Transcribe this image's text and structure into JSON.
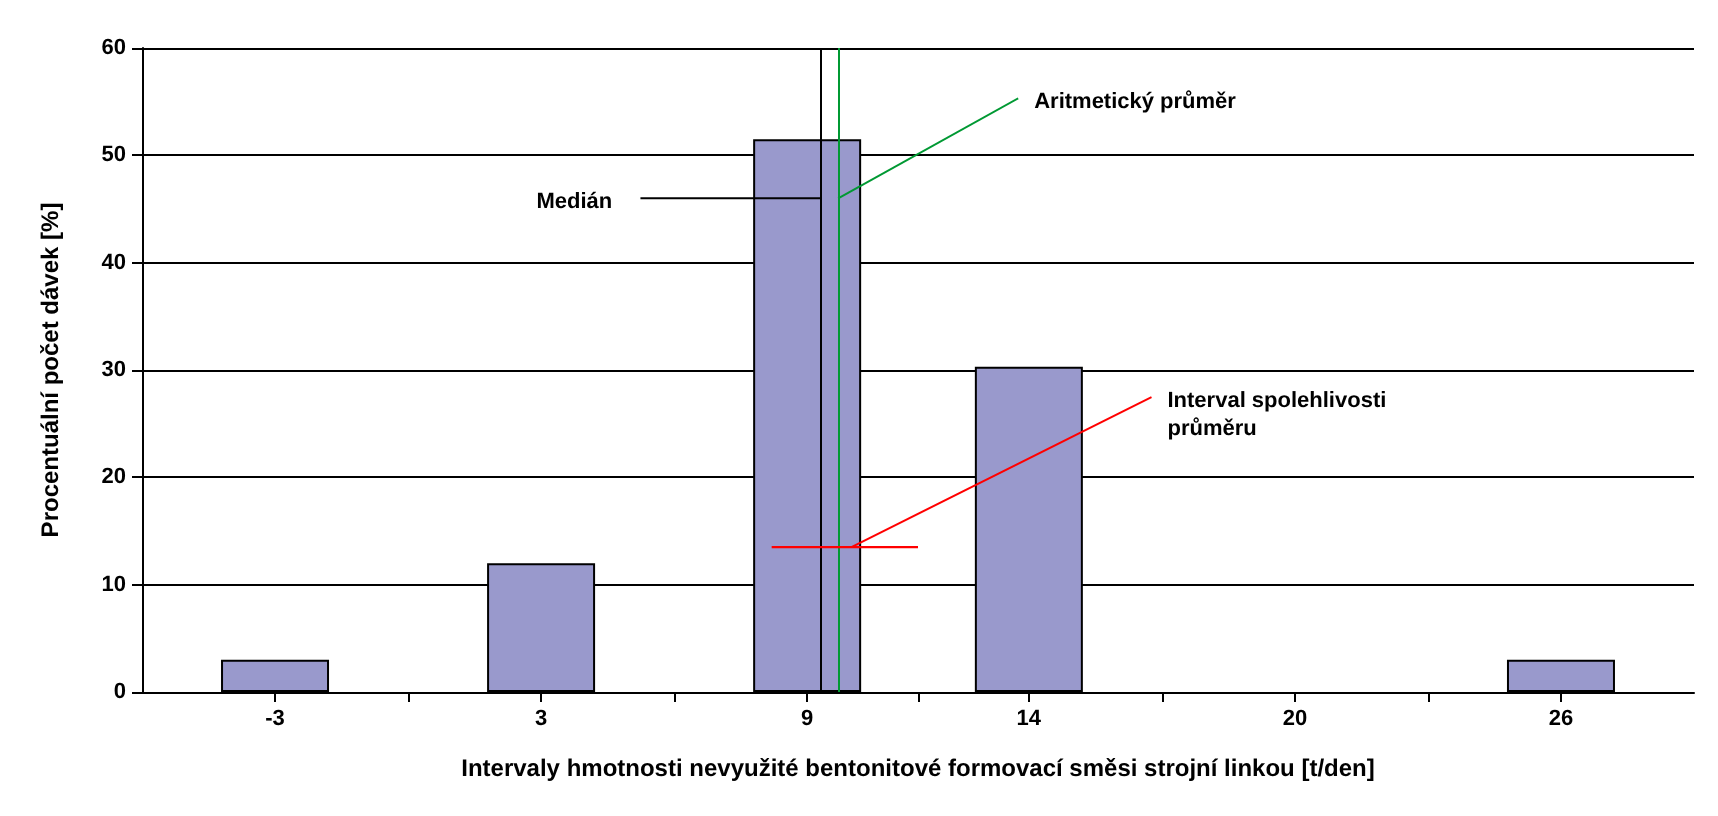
{
  "chart_data": {
    "type": "bar",
    "xlabel": "Intervaly hmotnosti nevyužité bentonitové formovací směsi strojní linkou [t/den]",
    "ylabel": "Procentuální počet dávek [%]",
    "x": [
      -3,
      3,
      9,
      14,
      20,
      26
    ],
    "series": [
      {
        "color": "#9999cc",
        "values": [
          3,
          12,
          51.5,
          30.3,
          0,
          3
        ]
      },
      {
        "type": "line",
        "color": "#ff0000",
        "x": [
          8.2,
          11.5
        ],
        "values": [
          13.5,
          13.5
        ]
      }
    ],
    "xlim": [
      -6,
      29
    ],
    "xticks": [
      -3,
      {
        "value": 0,
        "label": null
      },
      3,
      {
        "value": 6,
        "label": null
      },
      9,
      {
        "value": 11.5,
        "label": null
      },
      14,
      {
        "value": 17,
        "label": null
      },
      20,
      {
        "value": 23,
        "label": null
      },
      26
    ],
    "ylim": [
      0,
      60
    ],
    "yticks": [
      0,
      10,
      20,
      30,
      40,
      50,
      60
    ],
    "grid": "y",
    "ref_lines": [
      {
        "axis": "x",
        "value": 9.3,
        "color": "#000000"
      },
      {
        "axis": "x",
        "value": 9.7,
        "color": "#009933"
      }
    ],
    "annotations": [
      {
        "text": "Medián",
        "x": 9.3,
        "y": 46
      },
      {
        "text": "Aritmetický průměr",
        "x": 9.7,
        "y": 46
      },
      {
        "text": "Interval spolehlivosti průměru",
        "x": 10,
        "y": 13.5
      }
    ]
  }
}
